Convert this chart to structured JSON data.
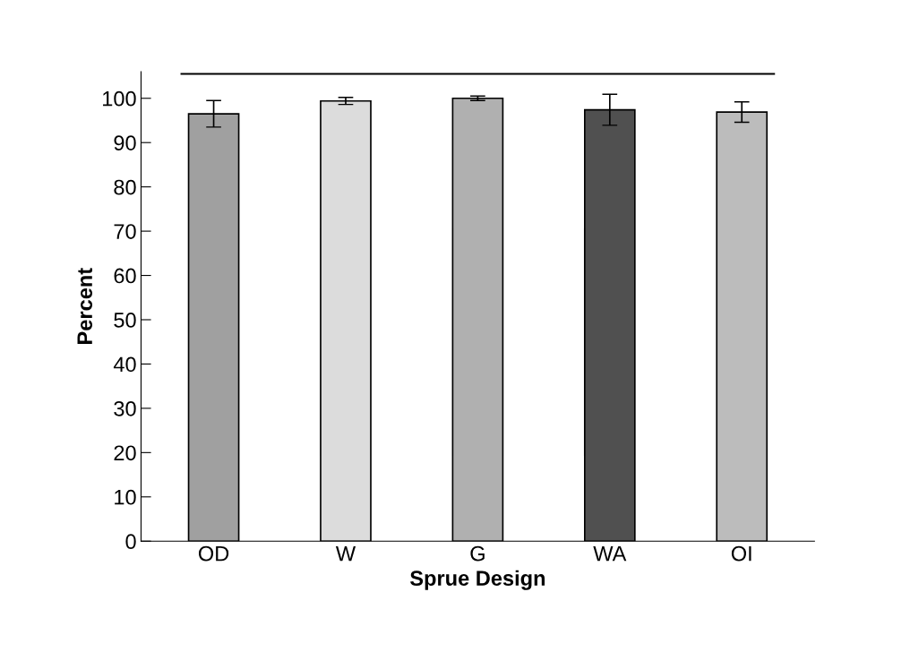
{
  "chart_data": {
    "type": "bar",
    "xlabel": "Sprue Design",
    "ylabel": "Percent",
    "categories": [
      "OD",
      "W",
      "G",
      "WA",
      "OI"
    ],
    "values": [
      96.5,
      99.4,
      100,
      97.4,
      96.9
    ],
    "errors": [
      3,
      0.8,
      0.5,
      3.5,
      2.3
    ],
    "colors": [
      "#a0a0a0",
      "#dcdcdc",
      "#b0b0b0",
      "#505050",
      "#bcbcbc"
    ],
    "ylim": [
      0,
      106
    ],
    "yticks": [
      0,
      10,
      20,
      30,
      40,
      50,
      60,
      70,
      80,
      90,
      100
    ],
    "ref_lines": [
      {
        "axis": "y",
        "value": 105.5,
        "label": null,
        "color": "#000000"
      }
    ],
    "grid": false,
    "legend": false
  }
}
